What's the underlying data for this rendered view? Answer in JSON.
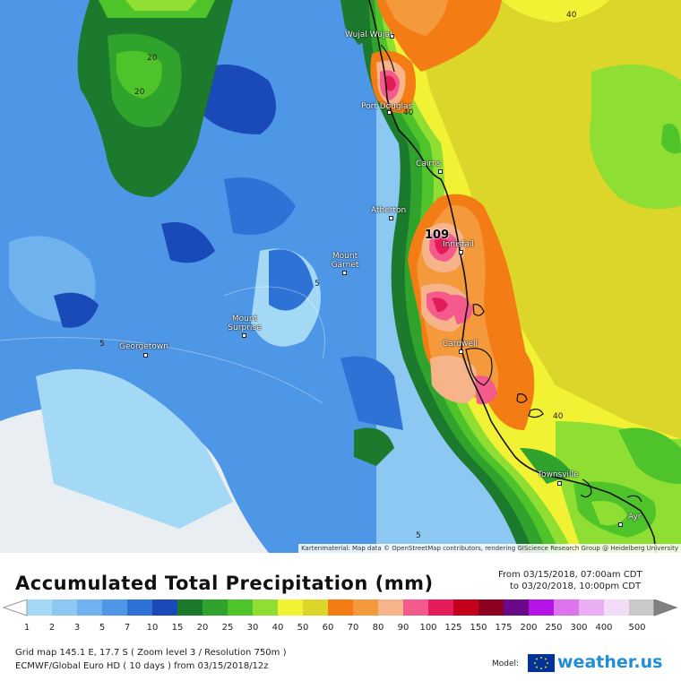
{
  "map": {
    "cities": [
      {
        "name": "Wujal Wujal",
        "key": "wujal"
      },
      {
        "name": "Port Douglas",
        "key": "portdouglas"
      },
      {
        "name": "Cairns",
        "key": "cairns"
      },
      {
        "name": "Atherton",
        "key": "atherton"
      },
      {
        "name": "Innisfail",
        "key": "innisfail"
      },
      {
        "name": "Mount Garnet",
        "key": "mountgarnet"
      },
      {
        "name": "Mount Surprise",
        "key": "mountsurprise"
      },
      {
        "name": "Georgetown",
        "key": "georgetown"
      },
      {
        "name": "Cardwell",
        "key": "cardwell"
      },
      {
        "name": "Townsville",
        "key": "townsville"
      },
      {
        "name": "Ayr",
        "key": "ayr"
      }
    ],
    "contour_labels": [
      "20",
      "20",
      "40",
      "40",
      "5",
      "5",
      "40",
      "5"
    ],
    "max_value": "109",
    "attribution": "Kartenmaterial: Map data © OpenStreetMap contributors, rendering GIScience Research Group @ Heidelberg University"
  },
  "legend": {
    "title": "Accumulated Total Precipitation (mm)",
    "from": "From 03/15/2018, 07:00am CDT",
    "to": "to 03/20/2018, 10:00pm CDT",
    "scale": [
      {
        "value": "1",
        "color": "#a4d9f6"
      },
      {
        "value": "2",
        "color": "#8cc8f2"
      },
      {
        "value": "3",
        "color": "#6fb2ee"
      },
      {
        "value": "5",
        "color": "#4e97e6"
      },
      {
        "value": "7",
        "color": "#2f72d6"
      },
      {
        "value": "10",
        "color": "#1a49b8"
      },
      {
        "value": "15",
        "color": "#1b7a2c"
      },
      {
        "value": "20",
        "color": "#2fa32b"
      },
      {
        "value": "25",
        "color": "#4fc42a"
      },
      {
        "value": "30",
        "color": "#8ede33"
      },
      {
        "value": "40",
        "color": "#f2f234"
      },
      {
        "value": "50",
        "color": "#dcd52a"
      },
      {
        "value": "60",
        "color": "#f47c14"
      },
      {
        "value": "70",
        "color": "#f4993c"
      },
      {
        "value": "80",
        "color": "#f7b38a"
      },
      {
        "value": "90",
        "color": "#f45a8c"
      },
      {
        "value": "100",
        "color": "#e41d5a"
      },
      {
        "value": "125",
        "color": "#c4001a"
      },
      {
        "value": "150",
        "color": "#8e0020"
      },
      {
        "value": "175",
        "color": "#6a0a8a"
      },
      {
        "value": "200",
        "color": "#b415e6"
      },
      {
        "value": "250",
        "color": "#dd74ee"
      },
      {
        "value": "300",
        "color": "#eaaef3"
      },
      {
        "value": "400",
        "color": "#f3dcf7"
      },
      {
        "value": "500",
        "color": "#c9c9c9"
      }
    ],
    "grid_info": "Grid map 145.1 E, 17.7 S ( Zoom level 3 / Resolution 750m )",
    "model_info": "ECMWF/Global Euro HD ( 10 days ) from 03/15/2018/12z",
    "model_label": "Model:",
    "brand": "weather.us"
  }
}
